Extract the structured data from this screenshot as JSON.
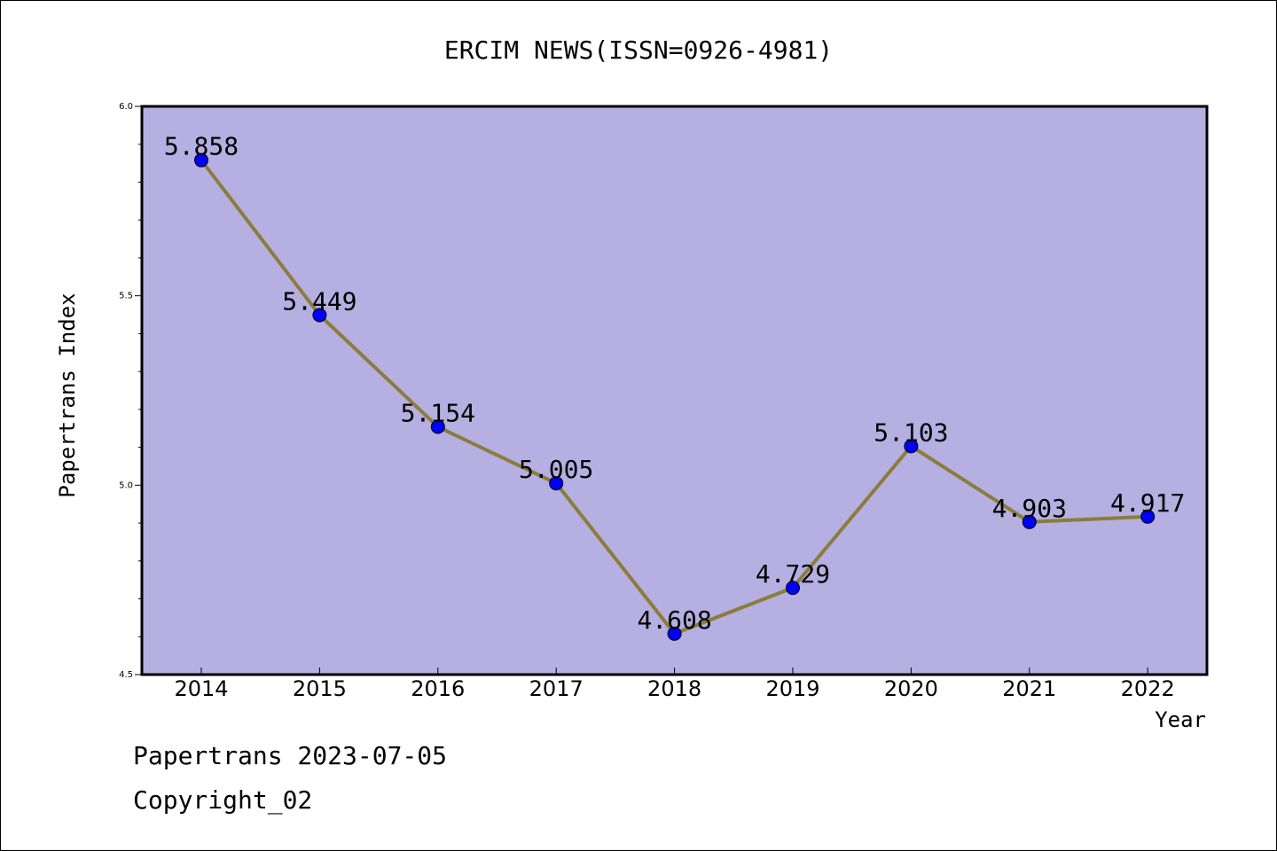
{
  "chart_data": {
    "type": "line",
    "title": "ERCIM NEWS(ISSN=0926-4981)",
    "xlabel": "Year",
    "ylabel": "Papertrans Index",
    "categories": [
      "2014",
      "2015",
      "2016",
      "2017",
      "2018",
      "2019",
      "2020",
      "2021",
      "2022"
    ],
    "series": [
      {
        "values": [
          5.858,
          5.449,
          5.154,
          5.005,
          4.608,
          4.729,
          5.103,
          4.903,
          4.917
        ],
        "labels": [
          "5.858",
          "5.449",
          "5.154",
          "5.005",
          "4.608",
          "4.729",
          "5.103",
          "4.903",
          "4.917"
        ],
        "line_color": "#8b7d3a",
        "marker_color": "#0000ff"
      }
    ],
    "ylim": [
      4.5,
      6.0
    ],
    "yticks": [
      "4.5",
      "5.0",
      "5.5",
      "6.0"
    ],
    "plot_background": "#b5afe2",
    "grid": false,
    "legend": "none"
  },
  "footer": {
    "line1": "Papertrans 2023-07-05",
    "line2": "Copyright_02"
  }
}
